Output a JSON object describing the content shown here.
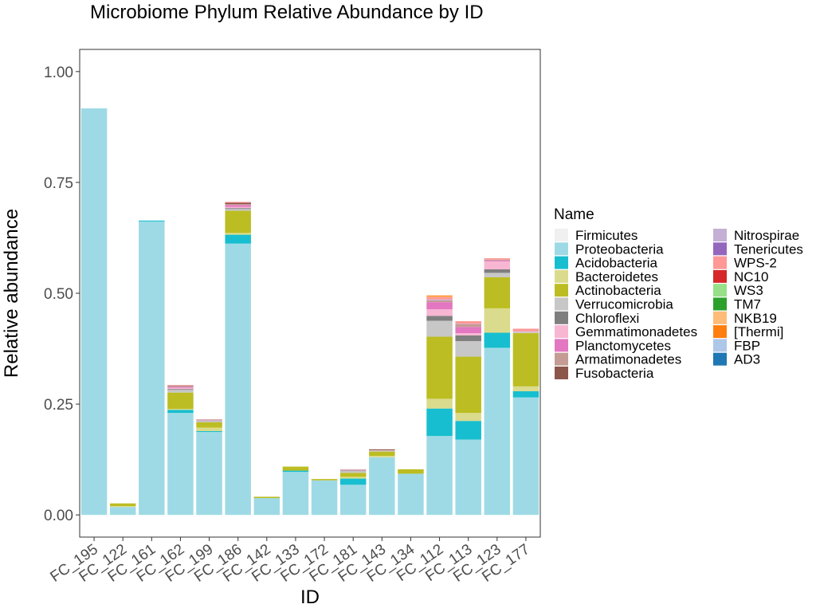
{
  "chart_data": {
    "type": "bar",
    "stacked": true,
    "title": "Microbiome Phylum Relative Abundance by ID",
    "xlabel": "ID",
    "ylabel": "Relative abundance",
    "ylim": [
      -0.05,
      1.05
    ],
    "yticks": [
      0,
      0.25,
      0.5,
      0.75,
      1.0
    ],
    "ytick_labels": [
      "0.00",
      "0.25",
      "0.50",
      "0.75",
      "1.00"
    ],
    "grid": false,
    "legend_title": "Name",
    "legend_position": "right",
    "categories": [
      "FC_195",
      "FC_122",
      "FC_161",
      "FC_162",
      "FC_199",
      "FC_186",
      "FC_142",
      "FC_133",
      "FC_172",
      "FC_181",
      "FC_143",
      "FC_134",
      "FC_112",
      "FC_113",
      "FC_123",
      "FC_177"
    ],
    "series": [
      {
        "name": "Firmicutes",
        "color": "#f0f0f0",
        "values": [
          0,
          0,
          0,
          0,
          0,
          0,
          0,
          0,
          0,
          0,
          0,
          0,
          0,
          0,
          0,
          0
        ]
      },
      {
        "name": "Proteobacteria",
        "color": "#9edae5",
        "values": [
          0.917,
          0.018,
          0.662,
          0.23,
          0.187,
          0.612,
          0.038,
          0.097,
          0.078,
          0.068,
          0.13,
          0.093,
          0.178,
          0.17,
          0.377,
          0.265
        ]
      },
      {
        "name": "Acidobacteria",
        "color": "#17becf",
        "values": [
          0,
          0,
          0.002,
          0.007,
          0.002,
          0.02,
          0,
          0.003,
          0,
          0.014,
          0,
          0,
          0.062,
          0.042,
          0.034,
          0.014
        ]
      },
      {
        "name": "Bacteroidetes",
        "color": "#dbdb8d",
        "values": [
          0,
          0.002,
          0,
          0.002,
          0.008,
          0.004,
          0,
          0,
          0,
          0.004,
          0.003,
          0,
          0.022,
          0.018,
          0.055,
          0.011
        ]
      },
      {
        "name": "Actinobacteria",
        "color": "#bcbd22",
        "values": [
          0,
          0.006,
          0,
          0.037,
          0.012,
          0.05,
          0.003,
          0.009,
          0.003,
          0.009,
          0.01,
          0.01,
          0.14,
          0.127,
          0.07,
          0.12
        ]
      },
      {
        "name": "Verrucomicrobia",
        "color": "#c7c7c7",
        "values": [
          0,
          0,
          0,
          0.006,
          0.003,
          0.004,
          0,
          0,
          0,
          0.004,
          0.002,
          0,
          0.036,
          0.035,
          0.01,
          0.002
        ]
      },
      {
        "name": "Chloroflexi",
        "color": "#7f7f7f",
        "values": [
          0,
          0,
          0,
          0.002,
          0.001,
          0.002,
          0,
          0,
          0,
          0.001,
          0,
          0,
          0.011,
          0.013,
          0.008,
          0
        ]
      },
      {
        "name": "Gemmatimonadetes",
        "color": "#f7b6d2",
        "values": [
          0,
          0,
          0,
          0.003,
          0.002,
          0.003,
          0,
          0,
          0,
          0.002,
          0.001,
          0,
          0.015,
          0.005,
          0.018,
          0.002
        ]
      },
      {
        "name": "Planctomycetes",
        "color": "#e377c2",
        "values": [
          0,
          0,
          0,
          0.002,
          0,
          0.004,
          0,
          0,
          0,
          0,
          0,
          0,
          0.016,
          0.014,
          0.002,
          0
        ]
      },
      {
        "name": "Armatimonadetes",
        "color": "#c49c94",
        "values": [
          0,
          0,
          0,
          0.002,
          0.001,
          0.002,
          0,
          0,
          0,
          0.001,
          0,
          0,
          0.004,
          0.006,
          0.002,
          0.001
        ]
      },
      {
        "name": "Fusobacteria",
        "color": "#8c564b",
        "values": [
          0,
          0,
          0,
          0.001,
          0,
          0.003,
          0,
          0,
          0,
          0,
          0.002,
          0,
          0,
          0,
          0,
          0
        ]
      },
      {
        "name": "Nitrospirae",
        "color": "#c5b0d5",
        "values": [
          0,
          0,
          0,
          0,
          0,
          0,
          0,
          0,
          0,
          0,
          0,
          0,
          0.002,
          0.001,
          0,
          0
        ]
      },
      {
        "name": "Tenericutes",
        "color": "#9467bd",
        "values": [
          0,
          0,
          0,
          0,
          0,
          0,
          0,
          0,
          0,
          0,
          0,
          0,
          0,
          0,
          0,
          0
        ]
      },
      {
        "name": "WPS-2",
        "color": "#ff9896",
        "values": [
          0,
          0,
          0,
          0.001,
          0,
          0.002,
          0,
          0,
          0,
          0,
          0,
          0,
          0.005,
          0.006,
          0.003,
          0.005
        ]
      },
      {
        "name": "NC10",
        "color": "#d62728",
        "values": [
          0,
          0,
          0,
          0,
          0,
          0,
          0,
          0,
          0,
          0,
          0,
          0,
          0,
          0,
          0,
          0
        ]
      },
      {
        "name": "WS3",
        "color": "#98df8a",
        "values": [
          0,
          0,
          0,
          0,
          0,
          0,
          0,
          0,
          0,
          0,
          0,
          0,
          0,
          0,
          0,
          0
        ]
      },
      {
        "name": "TM7",
        "color": "#2ca02c",
        "values": [
          0,
          0,
          0,
          0,
          0,
          0,
          0,
          0,
          0,
          0,
          0,
          0,
          0,
          0,
          0,
          0
        ]
      },
      {
        "name": "NKB19",
        "color": "#ffbb78",
        "values": [
          0,
          0,
          0,
          0,
          0,
          0,
          0,
          0,
          0,
          0,
          0,
          0,
          0.002,
          0,
          0,
          0
        ]
      },
      {
        "name": "[Thermi]",
        "color": "#ff7f0e",
        "values": [
          0,
          0,
          0,
          0,
          0,
          0,
          0,
          0,
          0,
          0,
          0,
          0,
          0.002,
          0,
          0,
          0
        ]
      },
      {
        "name": "FBP",
        "color": "#aec7e8",
        "values": [
          0,
          0,
          0,
          0,
          0,
          0,
          0,
          0,
          0,
          0,
          0,
          0,
          0,
          0,
          0,
          0
        ]
      },
      {
        "name": "AD3",
        "color": "#1f77b4",
        "values": [
          0,
          0,
          0,
          0,
          0,
          0,
          0,
          0,
          0,
          0,
          0,
          0,
          0,
          0,
          0,
          0
        ]
      }
    ]
  }
}
